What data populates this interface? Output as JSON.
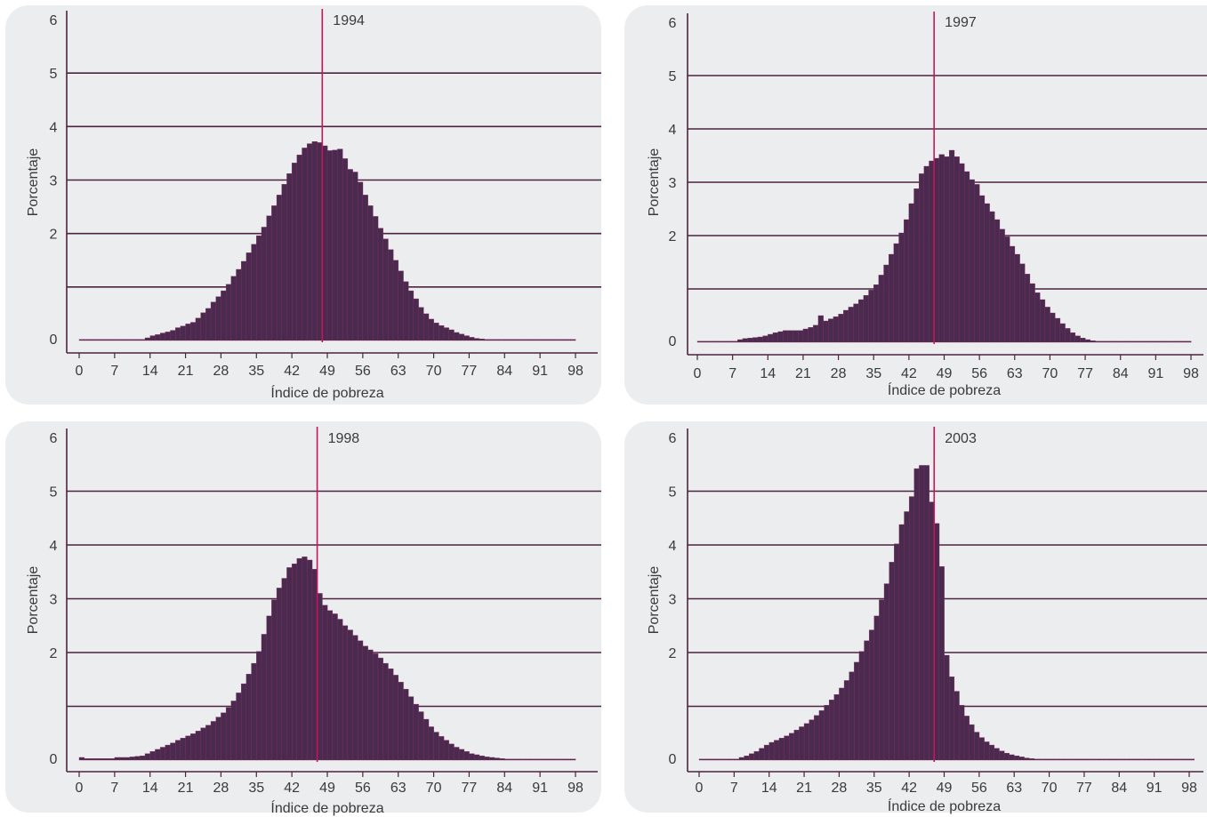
{
  "chart_data": [
    {
      "type": "bar",
      "label": "1994",
      "xlabel": "Índice de pobreza",
      "ylabel": "Porcentaje",
      "xticks": [
        0,
        7,
        14,
        21,
        28,
        35,
        42,
        49,
        56,
        63,
        70,
        77,
        84,
        91,
        98
      ],
      "yticks": [
        0,
        2,
        3,
        4,
        5,
        6
      ],
      "gridlines": [
        1,
        2,
        3,
        4,
        5
      ],
      "ylim": [
        0,
        6
      ],
      "xlim": [
        0,
        98
      ],
      "reference_x": 48,
      "bin_start": 0,
      "bin_width": 1,
      "values": [
        0.02,
        0.02,
        0.02,
        0.02,
        0.02,
        0.02,
        0.02,
        0.02,
        0.02,
        0.02,
        0.02,
        0.02,
        0.02,
        0.05,
        0.09,
        0.11,
        0.14,
        0.16,
        0.19,
        0.24,
        0.27,
        0.31,
        0.34,
        0.42,
        0.52,
        0.6,
        0.72,
        0.82,
        0.93,
        1.05,
        1.2,
        1.33,
        1.48,
        1.64,
        1.8,
        1.96,
        2.12,
        2.33,
        2.52,
        2.72,
        2.92,
        3.12,
        3.32,
        3.47,
        3.6,
        3.68,
        3.72,
        3.7,
        3.64,
        3.55,
        3.56,
        3.58,
        3.4,
        3.2,
        3.15,
        2.96,
        2.72,
        2.52,
        2.32,
        2.1,
        1.9,
        1.7,
        1.5,
        1.3,
        1.1,
        0.93,
        0.78,
        0.62,
        0.5,
        0.4,
        0.33,
        0.28,
        0.24,
        0.2,
        0.15,
        0.12,
        0.09,
        0.06,
        0.04,
        0.03,
        0.02,
        0.02,
        0.02,
        0.02,
        0.02,
        0.02,
        0.02,
        0.02,
        0.02,
        0.02,
        0.02,
        0.02,
        0.02,
        0.02,
        0.02,
        0.02,
        0.02,
        0.02
      ]
    },
    {
      "type": "bar",
      "label": "1997",
      "xlabel": "Índice de pobreza",
      "ylabel": "Porcentaje",
      "xticks": [
        0,
        7,
        14,
        21,
        28,
        35,
        42,
        49,
        56,
        63,
        70,
        77,
        84,
        91,
        98
      ],
      "yticks": [
        0,
        2,
        3,
        4,
        5,
        6
      ],
      "gridlines": [
        1,
        2,
        3,
        4,
        5
      ],
      "ylim": [
        0,
        6
      ],
      "xlim": [
        0,
        98
      ],
      "reference_x": 47,
      "bin_start": 0,
      "bin_width": 1,
      "values": [
        0.0,
        0.0,
        0.0,
        0.0,
        0.0,
        0.0,
        0.0,
        0.02,
        0.05,
        0.07,
        0.08,
        0.09,
        0.1,
        0.12,
        0.15,
        0.18,
        0.2,
        0.22,
        0.22,
        0.22,
        0.22,
        0.25,
        0.28,
        0.32,
        0.5,
        0.4,
        0.44,
        0.48,
        0.53,
        0.6,
        0.66,
        0.72,
        0.8,
        0.88,
        0.98,
        1.08,
        1.26,
        1.45,
        1.65,
        1.85,
        2.05,
        2.3,
        2.6,
        2.88,
        3.16,
        3.3,
        3.4,
        3.45,
        3.52,
        3.48,
        3.6,
        3.48,
        3.35,
        3.2,
        3.05,
        2.96,
        2.75,
        2.6,
        2.45,
        2.3,
        2.12,
        1.98,
        1.8,
        1.65,
        1.47,
        1.28,
        1.1,
        0.93,
        0.8,
        0.66,
        0.55,
        0.45,
        0.35,
        0.26,
        0.18,
        0.12,
        0.08,
        0.05,
        0.03,
        0.02,
        0.02,
        0.01,
        0.01,
        0.0,
        0.0,
        0.0,
        0.0,
        0.0,
        0.0,
        0.0,
        0.0,
        0.0,
        0.0,
        0.0,
        0.0,
        0.0,
        0.0,
        0.0
      ]
    },
    {
      "type": "bar",
      "label": "1998",
      "xlabel": "Índice de pobreza",
      "ylabel": "Porcentaje",
      "xticks": [
        0,
        7,
        14,
        21,
        28,
        35,
        42,
        49,
        56,
        63,
        70,
        77,
        84,
        91,
        98
      ],
      "yticks": [
        0,
        2,
        3,
        4,
        5,
        6
      ],
      "gridlines": [
        1,
        2,
        3,
        4,
        5
      ],
      "ylim": [
        0,
        6
      ],
      "xlim": [
        0,
        98
      ],
      "reference_x": 47,
      "bin_start": 0,
      "bin_width": 1,
      "values": [
        0.05,
        0.03,
        0.03,
        0.03,
        0.03,
        0.03,
        0.03,
        0.05,
        0.05,
        0.05,
        0.06,
        0.07,
        0.08,
        0.12,
        0.16,
        0.2,
        0.24,
        0.28,
        0.32,
        0.37,
        0.41,
        0.45,
        0.49,
        0.54,
        0.6,
        0.65,
        0.72,
        0.8,
        0.88,
        0.98,
        1.1,
        1.25,
        1.42,
        1.6,
        1.8,
        2.02,
        2.34,
        2.68,
        2.98,
        3.2,
        3.38,
        3.58,
        3.65,
        3.75,
        3.78,
        3.72,
        3.55,
        3.1,
        2.88,
        2.78,
        2.72,
        2.62,
        2.5,
        2.42,
        2.32,
        2.22,
        2.12,
        2.05,
        1.98,
        1.9,
        1.8,
        1.7,
        1.58,
        1.45,
        1.32,
        1.18,
        1.04,
        0.9,
        0.76,
        0.62,
        0.52,
        0.44,
        0.37,
        0.3,
        0.24,
        0.2,
        0.16,
        0.12,
        0.1,
        0.08,
        0.06,
        0.05,
        0.04,
        0.03,
        0.02,
        0.02,
        0.02,
        0.02,
        0.02,
        0.02,
        0.02,
        0.02,
        0.02,
        0.02,
        0.02,
        0.02,
        0.02,
        0.02
      ]
    },
    {
      "type": "bar",
      "label": "2003",
      "xlabel": "Índice de pobreza",
      "ylabel": "Porcentaje",
      "xticks": [
        0,
        7,
        14,
        21,
        28,
        35,
        42,
        49,
        56,
        63,
        70,
        77,
        84,
        91,
        98
      ],
      "yticks": [
        0,
        2,
        3,
        4,
        5,
        6
      ],
      "gridlines": [
        1,
        2,
        3,
        4,
        5
      ],
      "ylim": [
        0,
        6
      ],
      "xlim": [
        0,
        98
      ],
      "reference_x": 47,
      "bin_start": 0,
      "bin_width": 1,
      "values": [
        0.02,
        0.02,
        0.02,
        0.02,
        0.02,
        0.02,
        0.02,
        0.02,
        0.05,
        0.08,
        0.12,
        0.16,
        0.22,
        0.28,
        0.33,
        0.37,
        0.41,
        0.45,
        0.5,
        0.56,
        0.62,
        0.68,
        0.75,
        0.83,
        0.92,
        1.02,
        1.12,
        1.22,
        1.34,
        1.48,
        1.64,
        1.82,
        2.02,
        2.22,
        2.42,
        2.68,
        2.98,
        3.28,
        3.68,
        4.02,
        4.38,
        4.62,
        4.9,
        5.42,
        5.48,
        5.48,
        4.8,
        4.4,
        3.6,
        1.95,
        1.55,
        1.28,
        1.02,
        0.82,
        0.66,
        0.52,
        0.42,
        0.34,
        0.28,
        0.22,
        0.17,
        0.13,
        0.1,
        0.08,
        0.06,
        0.04,
        0.03,
        0.02,
        0.02,
        0.02,
        0.02,
        0.02,
        0.02,
        0.02,
        0.02,
        0.02,
        0.02,
        0.02,
        0.02,
        0.02,
        0.02,
        0.02,
        0.02,
        0.02,
        0.02,
        0.02,
        0.02,
        0.02,
        0.02,
        0.02,
        0.02,
        0.02,
        0.02,
        0.02,
        0.02,
        0.02,
        0.02,
        0.02,
        0.02
      ]
    }
  ]
}
